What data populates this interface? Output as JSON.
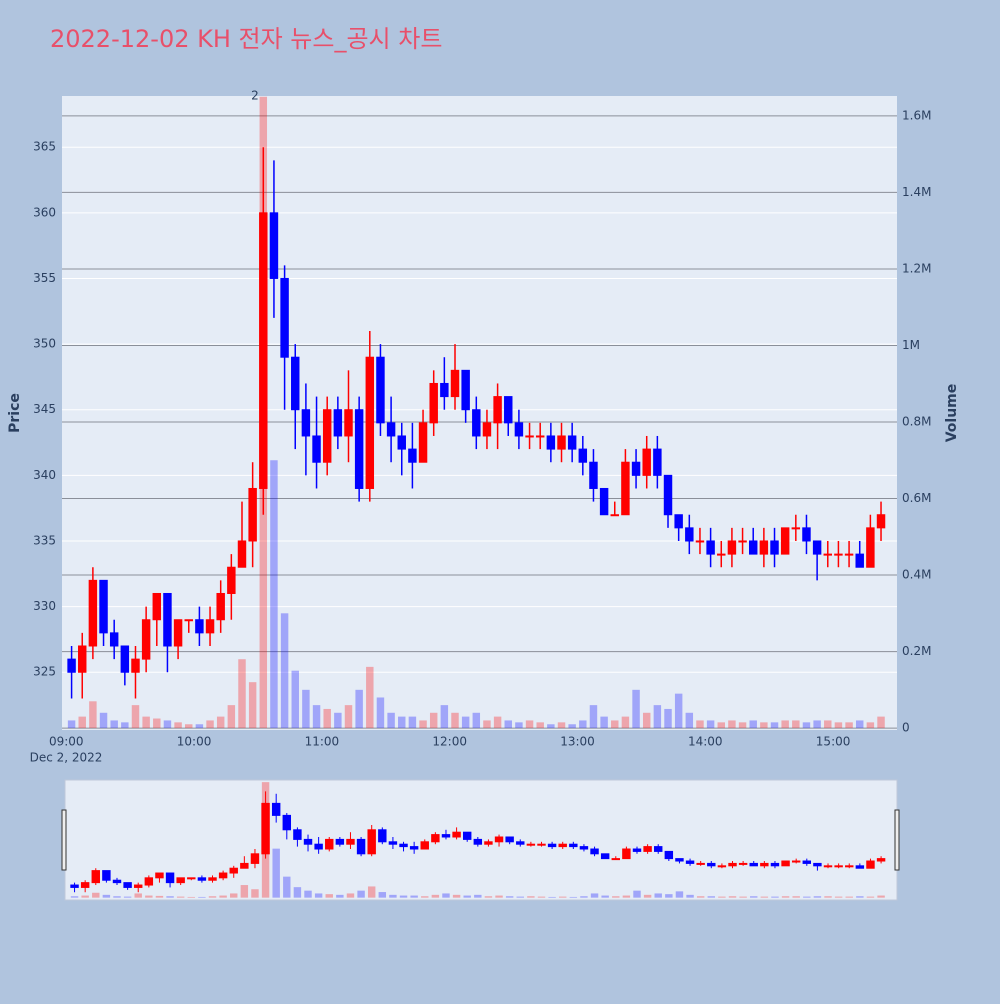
{
  "chart_data": {
    "type": "candlestick",
    "title": "2022-12-02 KH 전자 뉴스_공시 차트",
    "y_title": "Price",
    "y2_title": "Volume",
    "x_date_label": "Dec 2, 2022",
    "increasing_color": "#ff0000",
    "decreasing_color": "#0000ff",
    "x": [
      "09:00",
      "09:05",
      "09:10",
      "09:15",
      "09:20",
      "09:25",
      "09:30",
      "09:35",
      "09:40",
      "09:45",
      "09:50",
      "09:55",
      "10:00",
      "10:05",
      "10:10",
      "10:15",
      "10:20",
      "10:25",
      "10:30",
      "10:35",
      "10:40",
      "10:45",
      "10:50",
      "10:55",
      "11:00",
      "11:05",
      "11:10",
      "11:15",
      "11:20",
      "11:25",
      "11:30",
      "11:35",
      "11:40",
      "11:45",
      "11:50",
      "11:55",
      "12:00",
      "12:05",
      "12:10",
      "12:15",
      "12:20",
      "12:25",
      "12:30",
      "12:35",
      "12:40",
      "12:45",
      "12:50",
      "12:55",
      "13:00",
      "13:05",
      "13:10",
      "13:15",
      "13:20",
      "13:25",
      "13:30",
      "13:35",
      "13:40",
      "13:45",
      "13:50",
      "13:55",
      "14:00",
      "14:05",
      "14:10",
      "14:15",
      "14:20",
      "14:25",
      "14:30",
      "14:35",
      "14:40",
      "14:45",
      "14:50",
      "14:55",
      "15:00",
      "15:05",
      "15:10",
      "15:15",
      "15:20"
    ],
    "open": [
      326,
      325,
      327,
      332,
      328,
      327,
      325,
      326,
      329,
      331,
      327,
      329,
      329,
      328,
      329,
      331,
      333,
      335,
      339,
      360,
      355,
      349,
      345,
      343,
      341,
      345,
      343,
      345,
      339,
      349,
      344,
      343,
      342,
      341,
      344,
      347,
      346,
      348,
      345,
      343,
      344,
      346,
      344,
      343,
      343,
      343,
      342,
      343,
      342,
      341,
      339,
      337,
      337,
      341,
      340,
      342,
      340,
      337,
      336,
      335,
      335,
      334,
      334,
      335,
      335,
      334,
      335,
      334,
      336,
      336,
      335,
      334,
      334,
      334,
      334,
      333,
      336
    ],
    "high": [
      327,
      328,
      333,
      332,
      329,
      327,
      327,
      330,
      331,
      331,
      329,
      329,
      330,
      330,
      332,
      334,
      338,
      341,
      365,
      364,
      356,
      350,
      347,
      346,
      346,
      346,
      348,
      346,
      351,
      350,
      346,
      344,
      344,
      345,
      348,
      349,
      350,
      348,
      346,
      345,
      347,
      346,
      345,
      344,
      344,
      344,
      344,
      344,
      343,
      342,
      339,
      338,
      342,
      342,
      343,
      343,
      340,
      337,
      337,
      336,
      336,
      335,
      336,
      336,
      336,
      336,
      336,
      336,
      337,
      337,
      335,
      335,
      335,
      335,
      335,
      337,
      338
    ],
    "low": [
      323,
      323,
      326,
      327,
      326,
      324,
      323,
      325,
      327,
      325,
      326,
      328,
      327,
      327,
      328,
      329,
      333,
      333,
      337,
      352,
      345,
      342,
      340,
      339,
      340,
      342,
      341,
      338,
      338,
      343,
      341,
      340,
      339,
      341,
      343,
      345,
      345,
      344,
      342,
      342,
      342,
      343,
      342,
      342,
      342,
      341,
      341,
      341,
      340,
      338,
      337,
      337,
      337,
      339,
      339,
      339,
      336,
      335,
      334,
      334,
      333,
      333,
      333,
      334,
      334,
      333,
      333,
      334,
      335,
      334,
      332,
      333,
      333,
      333,
      333,
      333,
      335
    ],
    "close": [
      325,
      327,
      332,
      328,
      327,
      325,
      326,
      329,
      331,
      327,
      329,
      329,
      328,
      329,
      331,
      333,
      335,
      339,
      360,
      355,
      349,
      345,
      343,
      341,
      345,
      343,
      345,
      339,
      349,
      344,
      343,
      342,
      341,
      344,
      347,
      346,
      348,
      345,
      343,
      344,
      346,
      344,
      343,
      343,
      343,
      342,
      343,
      342,
      341,
      339,
      337,
      337,
      341,
      340,
      342,
      340,
      337,
      336,
      335,
      335,
      334,
      334,
      335,
      335,
      334,
      335,
      334,
      336,
      336,
      335,
      334,
      334,
      334,
      334,
      333,
      336,
      337
    ],
    "volume": [
      20000,
      30000,
      70000,
      40000,
      20000,
      15000,
      60000,
      30000,
      25000,
      20000,
      15000,
      10000,
      10000,
      20000,
      30000,
      60000,
      180000,
      120000,
      1650000,
      700000,
      300000,
      150000,
      100000,
      60000,
      50000,
      40000,
      60000,
      100000,
      160000,
      80000,
      40000,
      30000,
      30000,
      20000,
      40000,
      60000,
      40000,
      30000,
      40000,
      20000,
      30000,
      20000,
      15000,
      20000,
      15000,
      10000,
      15000,
      10000,
      20000,
      60000,
      30000,
      20000,
      30000,
      100000,
      40000,
      60000,
      50000,
      90000,
      40000,
      20000,
      20000,
      15000,
      20000,
      15000,
      20000,
      15000,
      15000,
      20000,
      20000,
      15000,
      20000,
      20000,
      15000,
      15000,
      20000,
      15000,
      30000
    ],
    "xlim": [
      "08:58",
      "15:30"
    ],
    "xticks": [
      "09:00",
      "10:00",
      "11:00",
      "12:00",
      "13:00",
      "14:00",
      "15:00"
    ],
    "ylim": [
      320.6,
      368.9
    ],
    "yticks": [
      325,
      330,
      335,
      340,
      345,
      350,
      355,
      360,
      365
    ],
    "y2lim": [
      -5000,
      1652000
    ],
    "y2ticks": [
      0,
      {
        "value": 200000,
        "label": "0.2M"
      },
      {
        "value": 400000,
        "label": "0.4M"
      },
      {
        "value": 600000,
        "label": "0.6M"
      },
      {
        "value": 800000,
        "label": "0.8M"
      },
      {
        "value": 1000000,
        "label": "1M"
      },
      {
        "value": 1200000,
        "label": "1.2M"
      },
      {
        "value": 1400000,
        "label": "1.4M"
      },
      {
        "value": 1600000,
        "label": "1.6M"
      }
    ],
    "annotations": [
      {
        "x": "10:30",
        "text": "2"
      }
    ],
    "grid": true,
    "range_slider": true
  }
}
